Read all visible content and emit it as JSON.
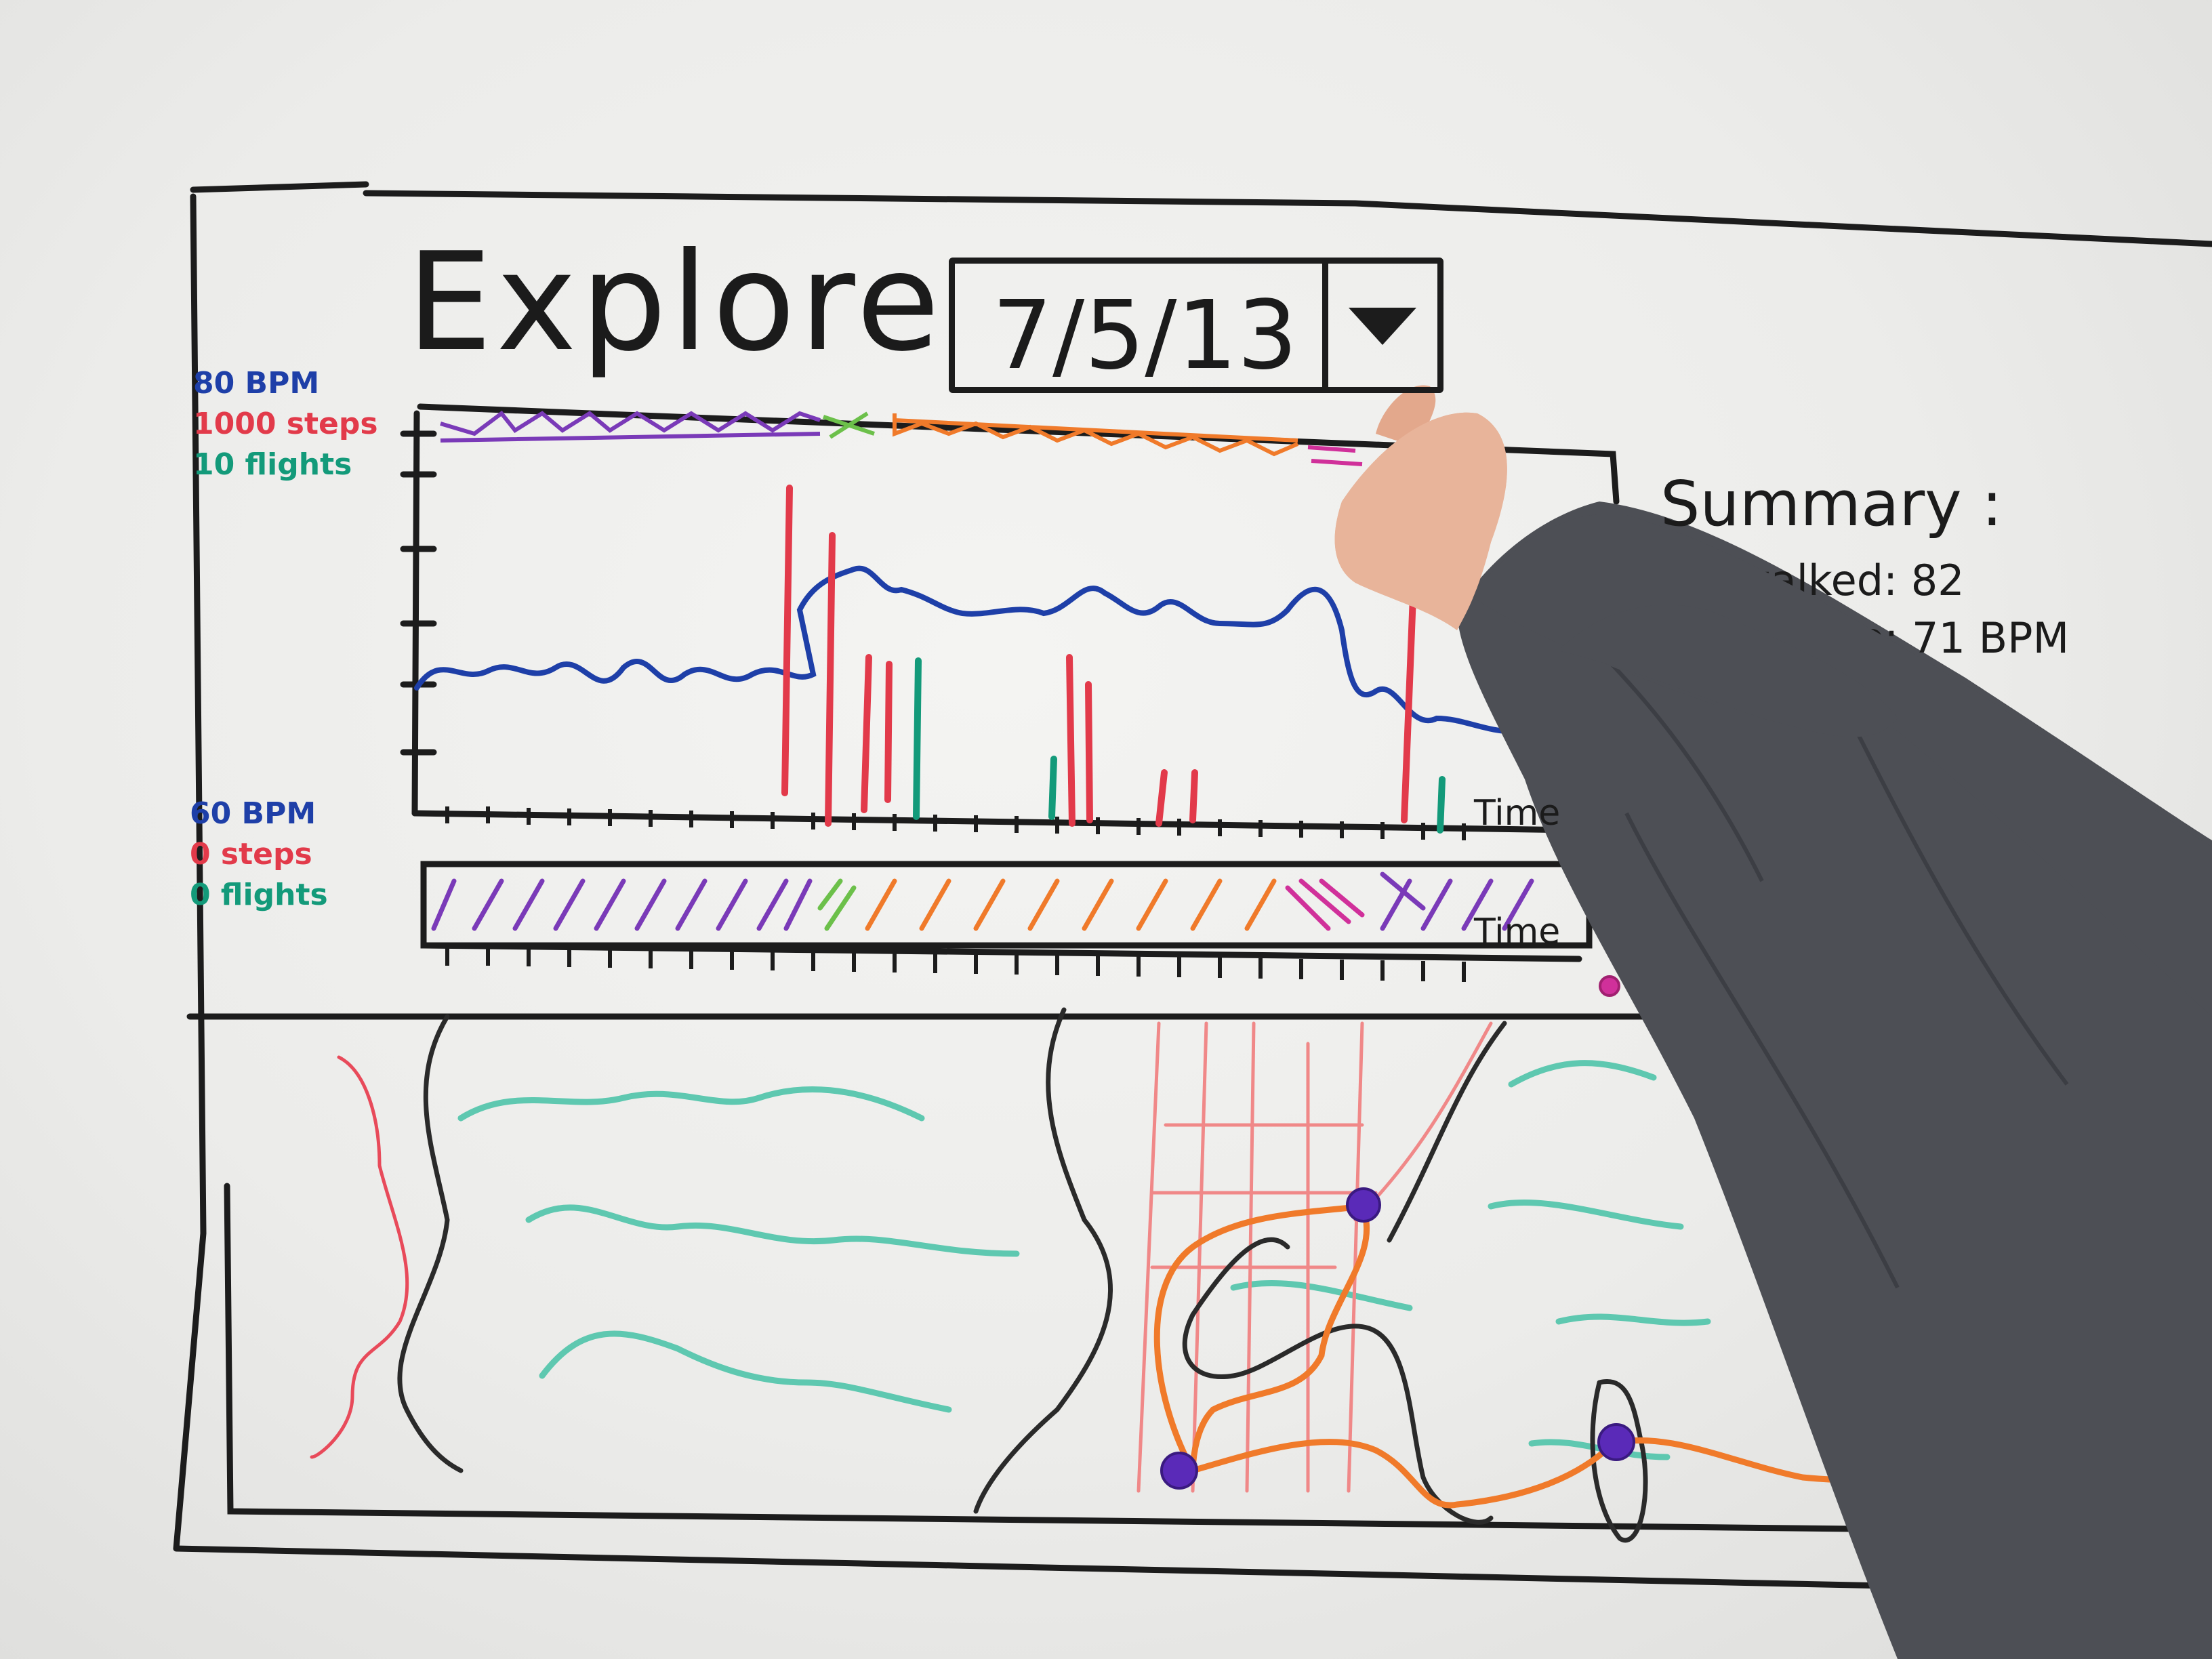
{
  "screen": {
    "title": "Explore",
    "date": {
      "value": "7/5/13",
      "dropdown_icon": "triangle-down-icon"
    }
  },
  "chart": {
    "legend_max": [
      {
        "label": "80 BPM",
        "color": "#1e3fa8"
      },
      {
        "label": "1000 steps",
        "color": "#e23a4a"
      },
      {
        "label": "10 flights",
        "color": "#139a7a"
      }
    ],
    "legend_min": [
      {
        "label": "60 BPM",
        "color": "#1e3fa8"
      },
      {
        "label": "0 steps",
        "color": "#e23a4a"
      },
      {
        "label": "0 flights",
        "color": "#139a7a"
      }
    ],
    "x_axis_label": "Time",
    "timeline_label": "Time"
  },
  "summary": {
    "title": "Summary :",
    "lines": [
      "s walked: 82",
      "ate: 71 BPM"
    ]
  },
  "colors": {
    "marker": "#1c1c1c",
    "heart_rate": "#1e3fa8",
    "steps": "#e23a4a",
    "flights": "#139a7a",
    "purple": "#7a3ab8",
    "orange": "#f07a2a",
    "green": "#6cc04a",
    "magenta": "#d0309a",
    "teal": "#5ec8b0",
    "sleeve": "#4d4f55",
    "skin": "#e8b49a"
  },
  "map": {
    "markers": 5
  }
}
